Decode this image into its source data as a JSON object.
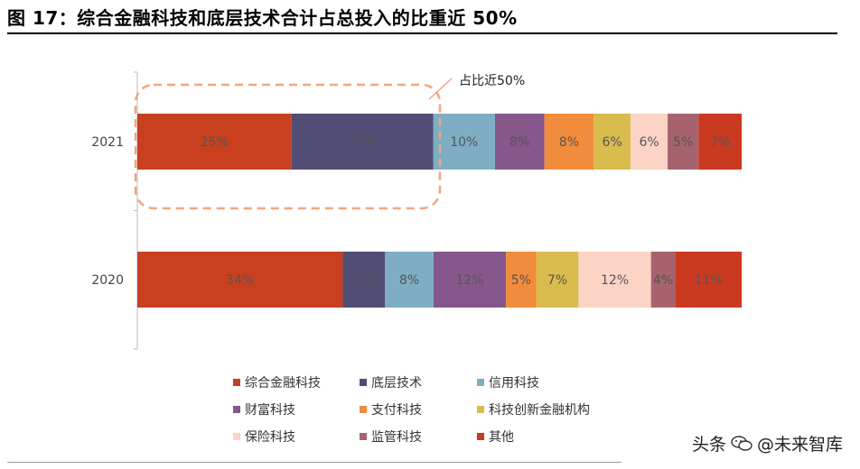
{
  "title": "图 17：综合金融科技和底层技术合计占总投入的比重近 50%",
  "chart_data": {
    "type": "bar",
    "orientation": "horizontal",
    "stacked": true,
    "percent_stacked": true,
    "categories": [
      "2021",
      "2020"
    ],
    "series": [
      {
        "name": "综合金融科技",
        "color": "#C9401F",
        "values": [
          25,
          34
        ],
        "labels": [
          "25%",
          "34%"
        ]
      },
      {
        "name": "底层技术",
        "color": "#514D75",
        "values": [
          23,
          7
        ],
        "labels": [
          "23%",
          "7%"
        ]
      },
      {
        "name": "信用科技",
        "color": "#7DAEC4",
        "values": [
          10,
          8
        ],
        "labels": [
          "10%",
          "8%"
        ]
      },
      {
        "name": "财富科技",
        "color": "#85578A",
        "values": [
          8,
          12
        ],
        "labels": [
          "8%",
          "12%"
        ]
      },
      {
        "name": "支付科技",
        "color": "#F08C3C",
        "values": [
          8,
          5
        ],
        "labels": [
          "8%",
          "5%"
        ]
      },
      {
        "name": "科技创新金融机构",
        "color": "#D9BB4E",
        "values": [
          6,
          7
        ],
        "labels": [
          "6%",
          "7%"
        ]
      },
      {
        "name": "保险科技",
        "color": "#FCD4C6",
        "values": [
          6,
          12
        ],
        "labels": [
          "6%",
          "12%"
        ]
      },
      {
        "name": "监管科技",
        "color": "#A6636E",
        "values": [
          5,
          4
        ],
        "labels": [
          "5%",
          "4%"
        ]
      },
      {
        "name": "其他",
        "color": "#C93A20",
        "values": [
          7,
          11
        ],
        "labels": [
          "7%",
          "11%"
        ]
      }
    ],
    "annotation": {
      "text": "占比近50%",
      "target_category": "2021",
      "target_series": [
        "综合金融科技",
        "底层技术"
      ]
    },
    "xlim": [
      0,
      100
    ],
    "legend_position": "bottom"
  },
  "watermark": {
    "prefix": "头条",
    "text": "@未来智库"
  }
}
